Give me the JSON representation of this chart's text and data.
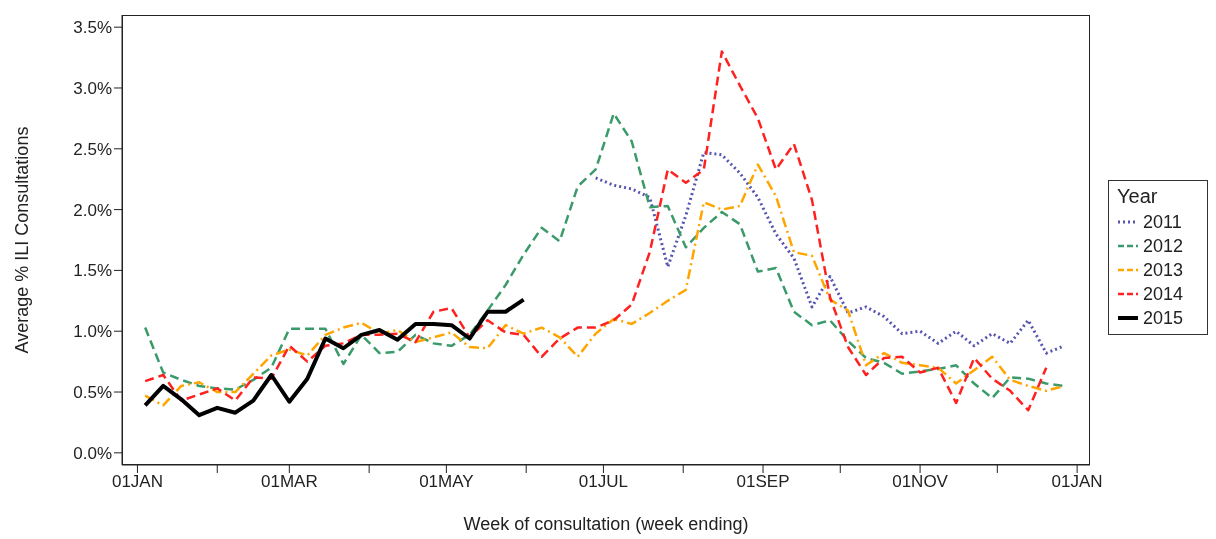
{
  "chart_data": {
    "type": "line",
    "xlabel": "Week of consultation (week ending)",
    "ylabel": "Average % ILI Consultations",
    "legend_title": "Year",
    "legend": "right",
    "grid": false,
    "xlim": [
      "2014-12-26",
      "2016-01-06"
    ],
    "xticks": [
      {
        "value": "2015-01-01",
        "label": "01JAN"
      },
      {
        "value": "2015-02-01",
        "label": null
      },
      {
        "value": "2015-03-01",
        "label": "01MAR"
      },
      {
        "value": "2015-04-01",
        "label": null
      },
      {
        "value": "2015-05-01",
        "label": "01MAY"
      },
      {
        "value": "2015-06-01",
        "label": null
      },
      {
        "value": "2015-07-01",
        "label": "01JUL"
      },
      {
        "value": "2015-08-01",
        "label": null
      },
      {
        "value": "2015-09-01",
        "label": "01SEP"
      },
      {
        "value": "2015-10-01",
        "label": null
      },
      {
        "value": "2015-11-01",
        "label": "01NOV"
      },
      {
        "value": "2015-12-01",
        "label": null
      },
      {
        "value": "2016-01-01",
        "label": "01JAN"
      }
    ],
    "ylim": [
      -0.1,
      3.6
    ],
    "yticks": [
      {
        "value": 0,
        "label": "0.0%"
      },
      {
        "value": 0.5,
        "label": "0.5%"
      },
      {
        "value": 1,
        "label": "1.0%"
      },
      {
        "value": 1.5,
        "label": "1.5%"
      },
      {
        "value": 2,
        "label": "2.0%"
      },
      {
        "value": 2.5,
        "label": "2.5%"
      },
      {
        "value": 3,
        "label": "3.0%"
      },
      {
        "value": 3.5,
        "label": "3.5%"
      }
    ],
    "x": [
      "2015-01-04",
      "2015-01-11",
      "2015-01-18",
      "2015-01-25",
      "2015-02-01",
      "2015-02-08",
      "2015-02-15",
      "2015-02-22",
      "2015-03-01",
      "2015-03-08",
      "2015-03-15",
      "2015-03-22",
      "2015-03-29",
      "2015-04-05",
      "2015-04-12",
      "2015-04-19",
      "2015-04-26",
      "2015-05-03",
      "2015-05-10",
      "2015-05-17",
      "2015-05-24",
      "2015-05-31",
      "2015-06-07",
      "2015-06-14",
      "2015-06-21",
      "2015-06-28",
      "2015-07-05",
      "2015-07-12",
      "2015-07-19",
      "2015-07-26",
      "2015-08-02",
      "2015-08-09",
      "2015-08-16",
      "2015-08-23",
      "2015-08-30",
      "2015-09-06",
      "2015-09-13",
      "2015-09-20",
      "2015-09-27",
      "2015-10-04",
      "2015-10-11",
      "2015-10-18",
      "2015-10-25",
      "2015-11-01",
      "2015-11-08",
      "2015-11-15",
      "2015-11-22",
      "2015-11-29",
      "2015-12-06",
      "2015-12-13",
      "2015-12-20",
      "2015-12-27"
    ],
    "series": [
      {
        "name": "2011",
        "color": "#5555b0",
        "line_style": "dotted",
        "values": [
          null,
          null,
          null,
          null,
          null,
          null,
          null,
          null,
          null,
          null,
          null,
          null,
          null,
          null,
          null,
          null,
          null,
          null,
          null,
          null,
          null,
          null,
          null,
          null,
          null,
          2.26,
          2.2,
          2.17,
          2.1,
          1.53,
          1.95,
          2.47,
          2.45,
          2.3,
          2.1,
          1.8,
          1.6,
          1.2,
          1.45,
          1.15,
          1.2,
          1.12,
          0.98,
          1.0,
          0.9,
          1.0,
          0.88,
          0.98,
          0.9,
          1.09,
          0.82,
          0.88
        ]
      },
      {
        "name": "2012",
        "color": "#3a9a6a",
        "line_style": "dashed",
        "values": [
          1.03,
          0.66,
          0.6,
          0.55,
          0.53,
          0.52,
          0.6,
          0.7,
          1.02,
          1.02,
          1.02,
          0.73,
          0.97,
          0.82,
          0.83,
          0.97,
          0.9,
          0.88,
          0.97,
          1.17,
          1.38,
          1.63,
          1.85,
          1.74,
          2.19,
          2.33,
          2.79,
          2.56,
          2.02,
          2.03,
          1.69,
          1.85,
          1.98,
          1.88,
          1.49,
          1.52,
          1.16,
          1.05,
          1.09,
          0.92,
          0.78,
          0.74,
          0.65,
          0.67,
          0.69,
          0.72,
          0.57,
          0.45,
          0.62,
          0.61,
          0.57,
          0.55
        ]
      },
      {
        "name": "2013",
        "color": "#ffa500",
        "line_style": "dashed",
        "values": [
          0.47,
          0.39,
          0.55,
          0.58,
          0.5,
          0.5,
          0.65,
          0.8,
          0.85,
          0.8,
          0.97,
          1.03,
          1.07,
          0.98,
          1.01,
          0.91,
          0.95,
          0.99,
          0.87,
          0.86,
          1.05,
          0.98,
          1.03,
          0.95,
          0.79,
          0.98,
          1.1,
          1.06,
          1.15,
          1.25,
          1.34,
          2.06,
          2.0,
          2.03,
          2.37,
          2.11,
          1.65,
          1.62,
          1.26,
          1.17,
          0.72,
          0.82,
          0.74,
          0.72,
          0.7,
          0.57,
          0.68,
          0.79,
          0.6,
          0.55,
          0.51,
          0.55
        ]
      },
      {
        "name": "2014",
        "color": "#ff2020",
        "line_style": "dashed",
        "values": [
          0.59,
          0.64,
          0.43,
          0.48,
          0.53,
          0.43,
          0.62,
          0.61,
          0.88,
          0.75,
          0.88,
          0.9,
          0.97,
          0.97,
          0.98,
          0.91,
          1.16,
          1.19,
          0.95,
          1.09,
          0.99,
          0.97,
          0.79,
          0.94,
          1.03,
          1.03,
          1.09,
          1.22,
          1.65,
          2.33,
          2.22,
          2.33,
          3.3,
          3.02,
          2.75,
          2.33,
          2.54,
          2.08,
          1.28,
          0.87,
          0.64,
          0.78,
          0.79,
          0.66,
          0.7,
          0.41,
          0.78,
          0.61,
          0.51,
          0.35,
          0.7,
          null
        ]
      },
      {
        "name": "2015",
        "color": "#000000",
        "line_style": "solid",
        "values": [
          0.39,
          0.55,
          0.44,
          0.31,
          0.37,
          0.33,
          0.43,
          0.64,
          0.42,
          0.61,
          0.94,
          0.86,
          0.97,
          1.01,
          0.93,
          1.06,
          1.06,
          1.05,
          0.94,
          1.16,
          1.16,
          1.26,
          null,
          null,
          null,
          null,
          null,
          null,
          null,
          null,
          null,
          null,
          null,
          null,
          null,
          null,
          null,
          null,
          null,
          null,
          null,
          null,
          null,
          null,
          null,
          null,
          null,
          null,
          null,
          null,
          null,
          null
        ]
      }
    ]
  }
}
